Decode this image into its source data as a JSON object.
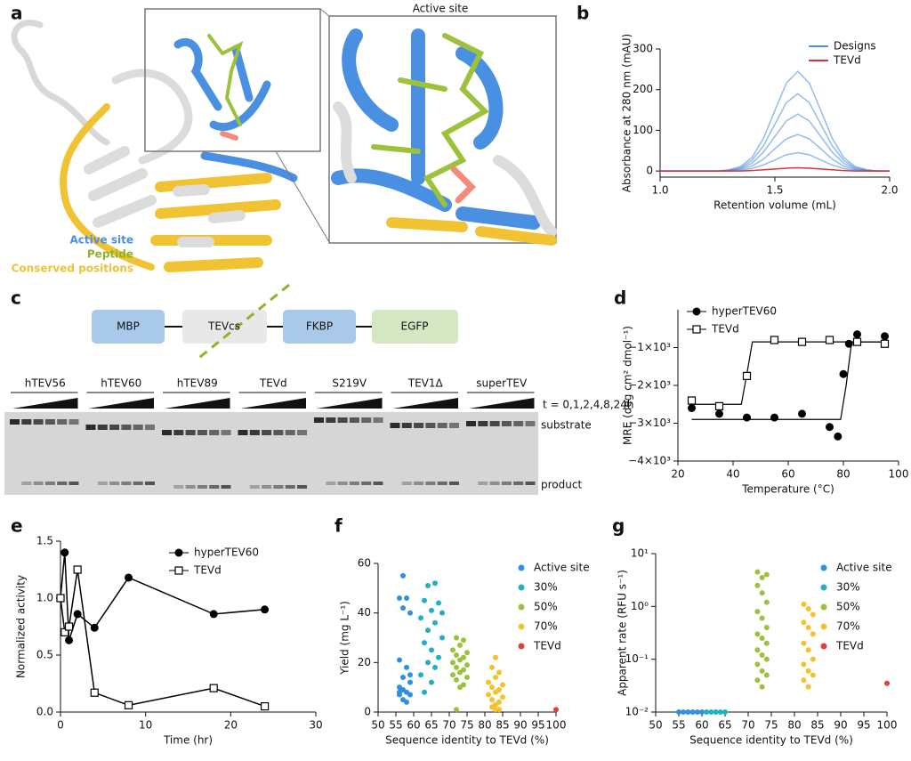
{
  "figure": {
    "panel_labels": [
      "a",
      "b",
      "c",
      "d",
      "e",
      "f",
      "g"
    ]
  },
  "panel_a": {
    "inset_title": "Active site",
    "legend": [
      "Active site",
      "Peptide",
      "Conserved positions"
    ]
  },
  "panel_c": {
    "constructs": [
      "MBP",
      "TEVcs",
      "FKBP",
      "EGFP"
    ],
    "samples": [
      "hTEV56",
      "hTEV60",
      "hTEV89",
      "TEVd",
      "S219V",
      "TEV1Δ",
      "superTEV"
    ],
    "timepoints": "t = 0,1,2,4,8,24h",
    "band_labels": [
      "substrate",
      "product"
    ]
  },
  "chart_data": [
    {
      "type": "line",
      "xlabel": "Retention volume (mL)",
      "ylabel": "Absorbance at 280 nm (mAU)",
      "x": [
        1.0,
        1.05,
        1.1,
        1.15,
        1.2,
        1.25,
        1.3,
        1.35,
        1.4,
        1.45,
        1.5,
        1.55,
        1.6,
        1.65,
        1.7,
        1.75,
        1.8,
        1.85,
        1.9,
        1.95,
        2.0
      ],
      "xlim": [
        1.0,
        2.0
      ],
      "xticks": [
        {
          "value": 1.0,
          "label": "1.0"
        },
        {
          "value": 1.5,
          "label": "1.5"
        },
        {
          "value": 2.0,
          "label": "2.0"
        }
      ],
      "ylim": [
        -15,
        300
      ],
      "yticks": [
        0,
        100,
        200,
        300
      ],
      "series": [
        {
          "name": "Designs",
          "color": "#4a90e2",
          "traces": [
            [
              0,
              0,
              0,
              0,
              0,
              0,
              3,
              11,
              33,
              80,
              149,
              216,
              245,
              216,
              149,
              80,
              33,
              11,
              3,
              0,
              0
            ],
            [
              0,
              0,
              0,
              0,
              0,
              0,
              2,
              8,
              26,
              62,
              115,
              168,
              190,
              168,
              115,
              62,
              26,
              8,
              2,
              0,
              0
            ],
            [
              0,
              0,
              0,
              0,
              0,
              0,
              2,
              6,
              19,
              46,
              85,
              123,
              140,
              123,
              85,
              46,
              19,
              6,
              2,
              0,
              0
            ],
            [
              0,
              0,
              0,
              0,
              0,
              0,
              1,
              4,
              12,
              29,
              55,
              79,
              90,
              79,
              55,
              29,
              12,
              4,
              1,
              0,
              0
            ],
            [
              0,
              0,
              0,
              0,
              0,
              0,
              0,
              2,
              6,
              15,
              27,
              40,
              45,
              40,
              27,
              15,
              6,
              2,
              0,
              0,
              0
            ]
          ]
        },
        {
          "name": "TEVd",
          "color": "#d9343a",
          "values": [
            0,
            0,
            0,
            0,
            0,
            0,
            0,
            0,
            1,
            3,
            5,
            7,
            8,
            7,
            5,
            3,
            1,
            0,
            0,
            0,
            0
          ]
        }
      ]
    },
    {
      "type": "scatter",
      "xlabel": "Temperature (°C)",
      "ylabel": "MRE (deg cm² dmol⁻¹)",
      "xlim": [
        20,
        100
      ],
      "xticks": [
        20,
        40,
        60,
        80,
        100
      ],
      "ylim": [
        -4000,
        0
      ],
      "yticks": [
        {
          "value": -4000,
          "label": "−4×10³"
        },
        {
          "value": -3000,
          "label": "−3×10³"
        },
        {
          "value": -2000,
          "label": "−2×10³"
        },
        {
          "value": -1000,
          "label": "−1×10³"
        }
      ],
      "series": [
        {
          "name": "hyperTEV60",
          "color": "#000000",
          "marker": "circle",
          "marker_fill": "#000000",
          "x": [
            25,
            35,
            45,
            55,
            65,
            75,
            78,
            80,
            82,
            85,
            95
          ],
          "values": [
            -2600,
            -2750,
            -2850,
            -2850,
            -2750,
            -3100,
            -3350,
            -1700,
            -900,
            -650,
            -700
          ],
          "fit": {
            "x": [
              25,
              79,
              81,
              83,
              95
            ],
            "values": [
              -2900,
              -2900,
              -2000,
              -850,
              -850
            ]
          }
        },
        {
          "name": "TEVd",
          "color": "#000000",
          "marker": "square",
          "marker_fill": "#ffffff",
          "x": [
            25,
            35,
            45,
            55,
            65,
            75,
            85,
            95
          ],
          "values": [
            -2400,
            -2550,
            -1750,
            -800,
            -850,
            -800,
            -850,
            -900
          ],
          "fit": {
            "x": [
              25,
              43,
              45,
              47,
              95
            ],
            "values": [
              -2500,
              -2500,
              -1700,
              -850,
              -850
            ]
          }
        }
      ]
    },
    {
      "type": "line",
      "xlabel": "Time (hr)",
      "ylabel": "Normalized activity",
      "xlim": [
        0,
        30
      ],
      "xticks": [
        0,
        10,
        20,
        30
      ],
      "ylim": [
        0,
        1.5
      ],
      "yticks": [
        {
          "value": 0,
          "label": "0.0"
        },
        {
          "value": 0.5,
          "label": "0.5"
        },
        {
          "value": 1,
          "label": "1.0"
        },
        {
          "value": 1.5,
          "label": "1.5"
        }
      ],
      "series": [
        {
          "name": "hyperTEV60",
          "color": "#000000",
          "marker": "circle",
          "marker_fill": "#000000",
          "x": [
            0,
            0.5,
            1,
            2,
            4,
            8,
            18,
            24
          ],
          "values": [
            1.0,
            1.4,
            0.63,
            0.86,
            0.74,
            1.18,
            0.86,
            0.9
          ]
        },
        {
          "name": "TEVd",
          "color": "#000000",
          "marker": "square",
          "marker_fill": "#ffffff",
          "x": [
            0,
            0.5,
            1,
            2,
            4,
            8,
            18,
            24
          ],
          "values": [
            1.0,
            0.7,
            0.75,
            1.25,
            0.17,
            0.06,
            0.21,
            0.05
          ]
        }
      ]
    },
    {
      "type": "scatter",
      "xlabel": "Sequence identity to TEVd (%)",
      "ylabel": "Yield (mg L⁻¹)",
      "xlim": [
        50,
        100
      ],
      "xticks": [
        50,
        55,
        60,
        65,
        70,
        75,
        80,
        85,
        90,
        95,
        100
      ],
      "ylim": [
        0,
        60
      ],
      "yticks": [
        0,
        20,
        40,
        60
      ],
      "series": [
        {
          "name": "Active site",
          "color": "#2f8fe0",
          "x": [
            57,
            56,
            58,
            57,
            59,
            56,
            58,
            57,
            59,
            56,
            57,
            58,
            56,
            59,
            57,
            58,
            56,
            59
          ],
          "values": [
            55,
            46,
            46,
            42,
            40,
            21,
            18,
            14,
            12,
            10,
            9,
            8,
            7,
            7,
            5,
            4,
            8,
            15
          ]
        },
        {
          "name": "30%",
          "color": "#22b0c0",
          "x": [
            66,
            64,
            63,
            67,
            65,
            62,
            66,
            64,
            68,
            63,
            65,
            67,
            64,
            66,
            62,
            65,
            68,
            63
          ],
          "values": [
            52,
            51,
            45,
            44,
            41,
            38,
            36,
            33,
            30,
            28,
            25,
            22,
            20,
            18,
            15,
            12,
            40,
            8
          ]
        },
        {
          "name": "50%",
          "color": "#9bc23a",
          "x": [
            72,
            74,
            73,
            71,
            75,
            72,
            74,
            73,
            71,
            75,
            72,
            74,
            73,
            71,
            75,
            72,
            74,
            73,
            72
          ],
          "values": [
            30,
            29,
            27,
            25,
            24,
            23,
            22,
            21,
            20,
            19,
            18,
            17,
            16,
            15,
            14,
            13,
            11,
            10,
            1
          ]
        },
        {
          "name": "70%",
          "color": "#f5c12e",
          "x": [
            83,
            82,
            84,
            83,
            81,
            85,
            82,
            84,
            83,
            81,
            85,
            82,
            84,
            83,
            82,
            84,
            83
          ],
          "values": [
            22,
            18,
            16,
            14,
            12,
            11,
            10,
            9,
            8,
            7,
            6,
            5,
            4,
            3,
            2,
            1,
            1
          ]
        },
        {
          "name": "TEVd",
          "color": "#e0413a",
          "x": [
            100
          ],
          "values": [
            1
          ]
        }
      ]
    },
    {
      "type": "scatter",
      "log_y": true,
      "xlabel": "Sequence identity to TEVd (%)",
      "ylabel": "Apparent rate (RFU s⁻¹)",
      "xlim": [
        50,
        100
      ],
      "xticks": [
        50,
        55,
        60,
        65,
        70,
        75,
        80,
        85,
        90,
        95,
        100
      ],
      "ylim": [
        0.01,
        10
      ],
      "yticks": [
        {
          "value": 0.01,
          "label": "10⁻²"
        },
        {
          "value": 0.1,
          "label": "10⁻¹"
        },
        {
          "value": 1,
          "label": "10⁰"
        },
        {
          "value": 10,
          "label": "10¹"
        }
      ],
      "series": [
        {
          "name": "Active site",
          "color": "#2f8fe0",
          "x": [
            55,
            56,
            57,
            58,
            59,
            60
          ],
          "values": [
            0.01,
            0.01,
            0.01,
            0.01,
            0.01,
            0.01
          ]
        },
        {
          "name": "30%",
          "color": "#22b0c0",
          "x": [
            61,
            62,
            63,
            64,
            65
          ],
          "values": [
            0.01,
            0.01,
            0.01,
            0.01,
            0.01
          ]
        },
        {
          "name": "50%",
          "color": "#9bc23a",
          "x": [
            72,
            73,
            74,
            72,
            73,
            74,
            72,
            73,
            74,
            72,
            73,
            74,
            72,
            73,
            74,
            72,
            73,
            74,
            72,
            73
          ],
          "values": [
            4.5,
            3.5,
            4,
            2.5,
            1.8,
            1.2,
            0.8,
            0.6,
            0.4,
            0.3,
            0.25,
            0.2,
            0.15,
            0.12,
            0.1,
            0.08,
            0.06,
            0.05,
            0.04,
            0.03
          ]
        },
        {
          "name": "70%",
          "color": "#f5c12e",
          "x": [
            82,
            83,
            84,
            82,
            83,
            84,
            82,
            83,
            84,
            82,
            83,
            84,
            82,
            83
          ],
          "values": [
            1.1,
            0.9,
            0.7,
            0.5,
            0.4,
            0.3,
            0.2,
            0.15,
            0.1,
            0.08,
            0.06,
            0.05,
            0.04,
            0.03
          ]
        },
        {
          "name": "TEVd",
          "color": "#e0413a",
          "x": [
            100
          ],
          "values": [
            0.035
          ]
        }
      ]
    }
  ]
}
